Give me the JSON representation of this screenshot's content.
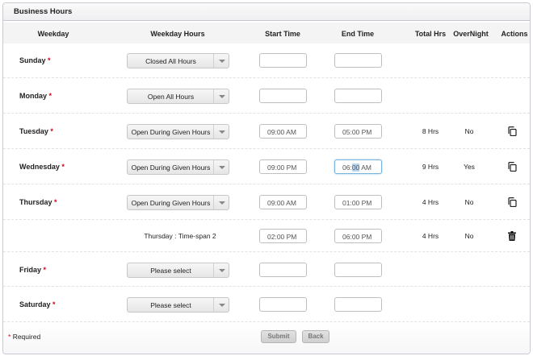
{
  "title": "Business Hours",
  "columns": [
    "Weekday",
    "Weekday Hours",
    "Start Time",
    "End Time",
    "Total Hrs",
    "OverNight",
    "Actions"
  ],
  "rows": [
    {
      "day": "Sunday",
      "hours": "Closed All Hours",
      "start": "",
      "end": "",
      "total": "",
      "overnight": "",
      "action": ""
    },
    {
      "day": "Monday",
      "hours": "Open All Hours",
      "start": "",
      "end": "",
      "total": "",
      "overnight": "",
      "action": ""
    },
    {
      "day": "Tuesday",
      "hours": "Open During Given Hours",
      "start": "09:00 AM",
      "end": "05:00 PM",
      "total": "8 Hrs",
      "overnight": "No",
      "action": "copy-icon"
    },
    {
      "day": "Wednesday",
      "hours": "Open During Given Hours",
      "start": "09:00 PM",
      "end_pre": "06:",
      "end_sel": "00",
      "end_post": " AM",
      "total": "9 Hrs",
      "overnight": "Yes",
      "action": "copy-icon"
    },
    {
      "day": "Thursday",
      "hours": "Open During Given Hours",
      "start": "09:00 AM",
      "end": "01:00 PM",
      "total": "4 Hrs",
      "overnight": "No",
      "action": "copy-icon"
    },
    {
      "span_label": "Thursday : Time-span 2",
      "start": "02:00 PM",
      "end": "06:00 PM",
      "total": "4 Hrs",
      "overnight": "No",
      "action": "trash-icon"
    },
    {
      "day": "Friday",
      "hours": "Please select",
      "start": "",
      "end": ""
    },
    {
      "day": "Saturday",
      "hours": "Please select",
      "start": "",
      "end": ""
    }
  ],
  "required_marker": "*",
  "footer": {
    "required_label": "Required",
    "submit": "Submit",
    "back": "Back"
  },
  "colors": {
    "required": "#d0021b",
    "focus": "#79b3d9"
  }
}
